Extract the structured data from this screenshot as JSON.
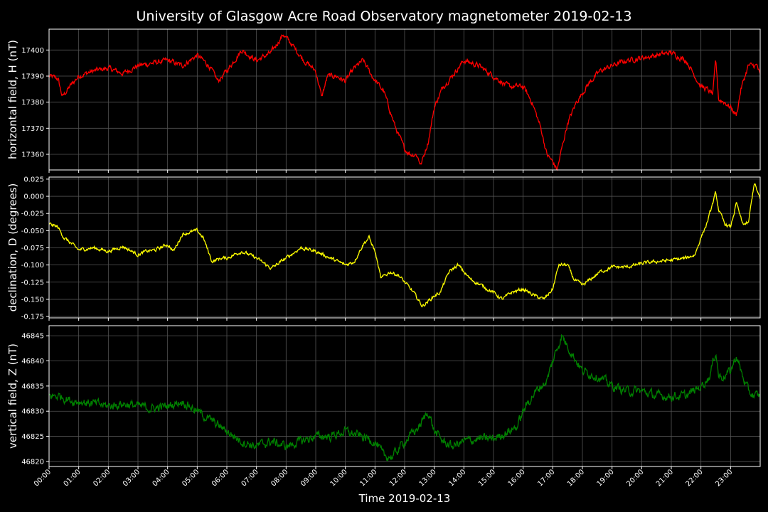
{
  "chart_data": {
    "type": "line",
    "title": "University of Glasgow Acre Road Observatory magnetometer 2019-02-13",
    "xlabel": "Time 2019-02-13",
    "x_ticks": [
      "00:00",
      "01:00",
      "02:00",
      "03:00",
      "04:00",
      "05:00",
      "06:00",
      "07:00",
      "08:00",
      "09:00",
      "10:00",
      "11:00",
      "12:00",
      "13:00",
      "14:00",
      "15:00",
      "16:00",
      "17:00",
      "18:00",
      "19:00",
      "20:00",
      "21:00",
      "22:00",
      "23:00"
    ],
    "xlim": [
      0,
      24
    ],
    "grid": true,
    "background": "#000000",
    "grid_color": "#555555",
    "panels": [
      {
        "ylabel": "horizontal field, H (nT)",
        "color": "#ff0000",
        "ylim": [
          17354,
          17408
        ],
        "y_ticks": [
          "17360",
          "17370",
          "17380",
          "17390",
          "17400"
        ],
        "y_tick_values": [
          17360,
          17370,
          17380,
          17390,
          17400
        ],
        "noise": 0.8,
        "x": [
          0,
          0.3,
          0.45,
          0.7,
          1.0,
          1.5,
          2.0,
          2.5,
          3.0,
          3.5,
          4.0,
          4.5,
          5.0,
          5.4,
          5.7,
          6.0,
          6.5,
          7.0,
          7.5,
          7.9,
          8.2,
          8.6,
          9.0,
          9.2,
          9.4,
          9.7,
          10.0,
          10.3,
          10.6,
          10.9,
          11.3,
          11.7,
          12.0,
          12.2,
          12.4,
          12.55,
          12.8,
          13.0,
          13.3,
          13.6,
          14.0,
          14.5,
          15.0,
          15.5,
          16.0,
          16.3,
          16.6,
          16.8,
          17.0,
          17.15,
          17.3,
          17.5,
          17.8,
          18.2,
          18.6,
          19.0,
          19.5,
          20.0,
          20.5,
          21.0,
          21.5,
          21.8,
          22.0,
          22.2,
          22.4,
          22.5,
          22.6,
          22.8,
          23.0,
          23.2,
          23.35,
          23.6,
          23.9,
          24.0
        ],
        "values": [
          17390,
          17389,
          17382,
          17386,
          17390,
          17392,
          17393,
          17391,
          17394,
          17395,
          17396,
          17394,
          17398,
          17394,
          17388,
          17392,
          17400,
          17396,
          17399,
          17406,
          17402,
          17396,
          17392,
          17382,
          17390,
          17390,
          17388,
          17393,
          17396,
          17390,
          17384,
          17370,
          17362,
          17360,
          17360,
          17356,
          17365,
          17378,
          17386,
          17390,
          17396,
          17394,
          17390,
          17386,
          17386,
          17380,
          17370,
          17360,
          17357,
          17354,
          17362,
          17372,
          17380,
          17387,
          17392,
          17394,
          17396,
          17397,
          17398,
          17399,
          17396,
          17390,
          17386,
          17385,
          17383,
          17396,
          17381,
          17380,
          17378,
          17375,
          17385,
          17394,
          17394,
          17390
        ]
      },
      {
        "ylabel": "declination, D (degrees)",
        "color": "#ffff00",
        "ylim": [
          -0.177,
          0.028
        ],
        "y_ticks": [
          "0.025",
          "0.000",
          "-0.025",
          "-0.050",
          "-0.075",
          "-0.100",
          "-0.125",
          "-0.150",
          "-0.175"
        ],
        "y_tick_values": [
          0.025,
          0,
          -0.025,
          -0.05,
          -0.075,
          -0.1,
          -0.125,
          -0.15,
          -0.175
        ],
        "noise": 0.002,
        "x": [
          0,
          0.3,
          0.5,
          1.0,
          1.5,
          2.0,
          2.5,
          3.0,
          3.3,
          3.6,
          4.0,
          4.2,
          4.5,
          5.0,
          5.2,
          5.5,
          5.8,
          6.0,
          6.5,
          7.0,
          7.5,
          8.0,
          8.5,
          9.0,
          9.5,
          10.0,
          10.3,
          10.6,
          10.8,
          11.0,
          11.2,
          11.5,
          11.8,
          12.0,
          12.3,
          12.6,
          13.0,
          13.2,
          13.5,
          13.8,
          14.2,
          14.6,
          15.0,
          15.3,
          15.6,
          16.0,
          16.4,
          16.7,
          17.0,
          17.2,
          17.5,
          17.7,
          18.0,
          18.3,
          18.6,
          19.0,
          19.5,
          20.0,
          20.5,
          21.0,
          21.5,
          21.8,
          22.0,
          22.2,
          22.3,
          22.5,
          22.6,
          22.8,
          23.0,
          23.2,
          23.4,
          23.6,
          23.8,
          24.0
        ],
        "values": [
          -0.04,
          -0.045,
          -0.06,
          -0.078,
          -0.075,
          -0.08,
          -0.073,
          -0.085,
          -0.08,
          -0.078,
          -0.07,
          -0.08,
          -0.055,
          -0.05,
          -0.06,
          -0.095,
          -0.09,
          -0.09,
          -0.08,
          -0.09,
          -0.105,
          -0.09,
          -0.075,
          -0.08,
          -0.09,
          -0.1,
          -0.095,
          -0.07,
          -0.06,
          -0.08,
          -0.12,
          -0.11,
          -0.115,
          -0.125,
          -0.14,
          -0.16,
          -0.145,
          -0.14,
          -0.11,
          -0.1,
          -0.12,
          -0.13,
          -0.14,
          -0.15,
          -0.14,
          -0.135,
          -0.145,
          -0.15,
          -0.135,
          -0.1,
          -0.1,
          -0.12,
          -0.13,
          -0.12,
          -0.11,
          -0.103,
          -0.103,
          -0.098,
          -0.095,
          -0.093,
          -0.09,
          -0.085,
          -0.06,
          -0.04,
          -0.025,
          0.005,
          -0.02,
          -0.04,
          -0.045,
          -0.01,
          -0.04,
          -0.04,
          0.02,
          -0.005
        ]
      },
      {
        "ylabel": "vertical field, Z (nT)",
        "color": "#008000",
        "ylim": [
          46819,
          46847
        ],
        "y_ticks": [
          "46820",
          "46825",
          "46830",
          "46835",
          "46840",
          "46845"
        ],
        "y_tick_values": [
          46820,
          46825,
          46830,
          46835,
          46840,
          46845
        ],
        "noise": 0.7,
        "x": [
          0,
          0.4,
          0.8,
          1.0,
          1.5,
          2.0,
          2.5,
          3.0,
          3.5,
          4.0,
          4.5,
          5.0,
          5.5,
          6.0,
          6.5,
          7.0,
          7.5,
          8.0,
          8.5,
          9.0,
          9.5,
          10.0,
          10.5,
          11.0,
          11.3,
          11.6,
          12.0,
          12.5,
          12.8,
          13.0,
          13.3,
          13.6,
          14.0,
          14.5,
          15.0,
          15.5,
          15.8,
          16.0,
          16.3,
          16.6,
          16.8,
          17.0,
          17.3,
          17.6,
          18.0,
          18.5,
          19.0,
          19.5,
          20.0,
          20.5,
          21.0,
          21.5,
          22.0,
          22.3,
          22.5,
          22.6,
          22.8,
          23.0,
          23.2,
          23.4,
          23.6,
          23.8,
          24.0
        ],
        "values": [
          46833,
          46833,
          46832,
          46832,
          46831.5,
          46831,
          46831.5,
          46831,
          46830.5,
          46831,
          46832,
          46830,
          46828,
          46826,
          46824,
          46823,
          46824,
          46823,
          46824,
          46825,
          46825,
          46826,
          46825,
          46824,
          46821,
          46821,
          46824,
          46827,
          46830,
          46826,
          46824,
          46823,
          46824,
          46824.5,
          46824.5,
          46826,
          46827,
          46830,
          46833,
          46835,
          46836,
          46840,
          46845,
          46842,
          46838,
          46837,
          46835,
          46834,
          46834,
          46833,
          46833,
          46833,
          46835,
          46837,
          46842,
          46837,
          46837,
          46838,
          46841,
          46837,
          46834,
          46833,
          46833
        ]
      }
    ]
  }
}
